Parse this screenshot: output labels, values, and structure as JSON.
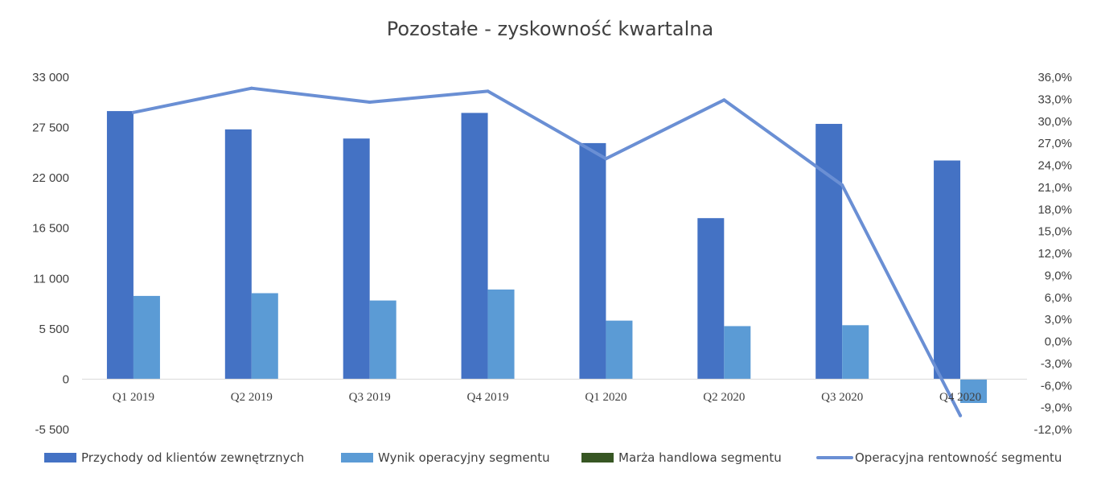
{
  "chart_data": {
    "type": "bar",
    "title": "Pozostałe - zyskowność kwartalna",
    "categories": [
      "Q1 2019",
      "Q2 2019",
      "Q3 2019",
      "Q4 2019",
      "Q1 2020",
      "Q2 2020",
      "Q3 2020",
      "Q4 2020"
    ],
    "series": [
      {
        "name": "Przychody od klientów zewnętrznych",
        "kind": "bar",
        "axis": "left",
        "color": "#4472C4",
        "values": [
          29300,
          27300,
          26300,
          29100,
          25800,
          17600,
          27900,
          23900
        ]
      },
      {
        "name": "Wynik operacyjny segmentu",
        "kind": "bar",
        "axis": "left",
        "color": "#5B9BD5",
        "values": [
          9100,
          9400,
          8600,
          9800,
          6400,
          5800,
          5900,
          -2600
        ]
      },
      {
        "name": "Marża handlowa segmentu",
        "kind": "bar",
        "axis": "left",
        "color": "#375623",
        "values": [
          0,
          0,
          0,
          0,
          0,
          0,
          0,
          0
        ]
      },
      {
        "name": "Operacyjna rentowność segmentu",
        "kind": "line",
        "axis": "right",
        "color": "#6A8FD4",
        "values": [
          31.2,
          34.5,
          32.6,
          34.1,
          24.9,
          32.9,
          21.3,
          -10.1
        ]
      }
    ],
    "y_left": {
      "ylim": [
        -5500,
        33000
      ],
      "tick_values": [
        33000,
        27500,
        22000,
        16500,
        11000,
        5500,
        0,
        -5500
      ],
      "tick_labels": [
        "33 000",
        "27 500",
        "22 000",
        "16 500",
        "11 000",
        "5 500",
        "0",
        "-5 500"
      ]
    },
    "y_right": {
      "ylim": [
        -12,
        36
      ],
      "tick_values": [
        36,
        33,
        30,
        27,
        24,
        21,
        18,
        15,
        12,
        9,
        6,
        3,
        0,
        -3,
        -6,
        -9,
        -12
      ],
      "tick_labels": [
        "36,0%",
        "33,0%",
        "30,0%",
        "27,0%",
        "24,0%",
        "21,0%",
        "18,0%",
        "15,0%",
        "12,0%",
        "9,0%",
        "6,0%",
        "3,0%",
        "0,0%",
        "-3,0%",
        "-6,0%",
        "-9,0%",
        "-12,0%"
      ]
    },
    "grid": false,
    "legend_position": "bottom"
  }
}
